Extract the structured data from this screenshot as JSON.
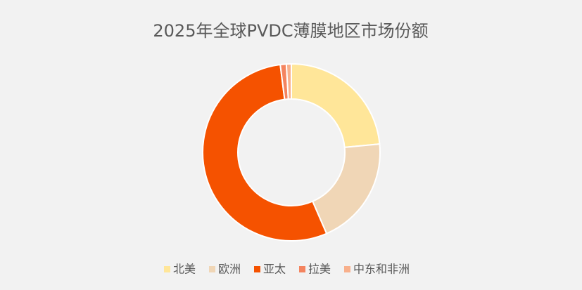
{
  "chart_data": {
    "type": "donut",
    "title": "2025年全球PVDC薄膜地区市场份额",
    "categories": [
      "北美",
      "欧洲",
      "亚太",
      "拉美",
      "中东和非洲"
    ],
    "values": [
      23.5,
      20,
      54.5,
      1.1,
      0.9
    ],
    "colors": [
      "#ffe699",
      "#f0d6b6",
      "#f55200",
      "#f4845f",
      "#f8b08c"
    ],
    "legend": "bottom"
  }
}
